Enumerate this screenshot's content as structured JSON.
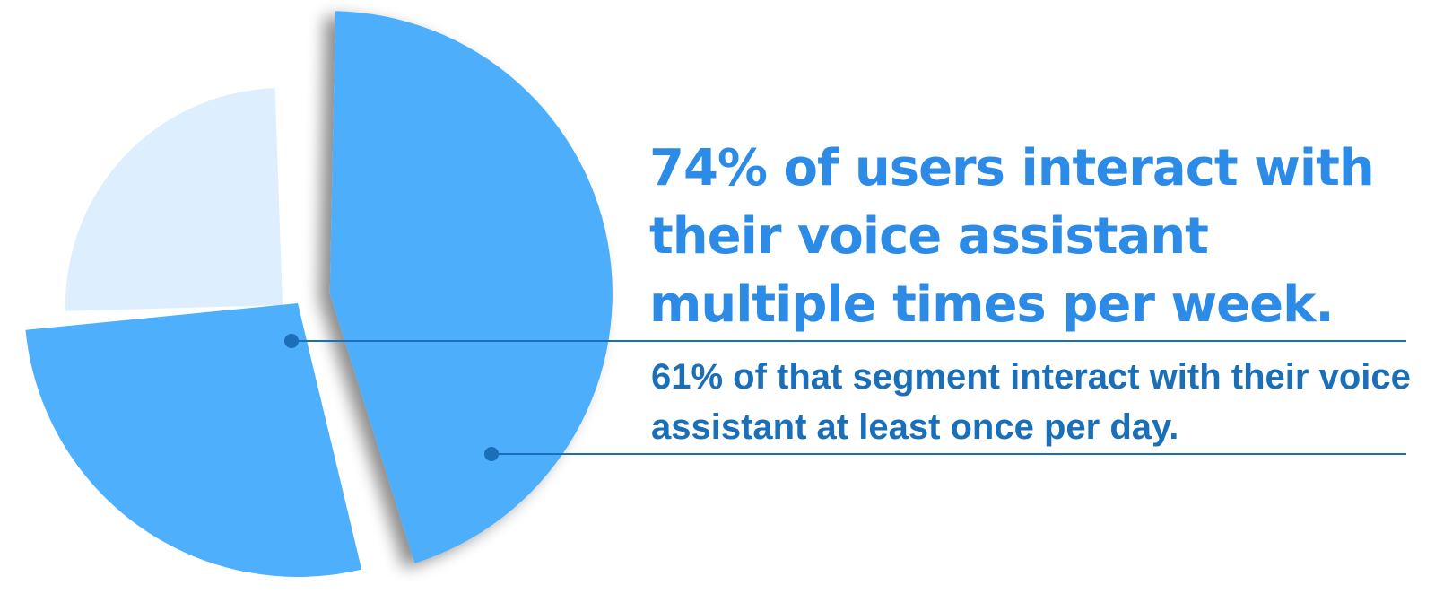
{
  "headline": "74% of users interact with their voice assistant multiple times per week.",
  "subline": "61% of that segment interact with their voice assistant at least once per day.",
  "colors": {
    "slice_main": "#4eaffc",
    "slice_rest": "#ddeefe",
    "headline": "#2b8be6",
    "subline": "#1a6fb8",
    "leader_line": "#1a6fb8"
  },
  "chart_data": {
    "type": "pie",
    "title": "",
    "slices": [
      {
        "label": "",
        "value": 26
      },
      {
        "label": "",
        "value": 74
      }
    ],
    "sub_segment": {
      "parent_value": 74,
      "value": 61,
      "unit": "% of segment",
      "exploded": true
    },
    "annotations": [
      {
        "value": 74,
        "text": "74% of users interact with their voice assistant multiple times per week."
      },
      {
        "value": 61,
        "text": "61% of that segment interact with their voice assistant at least once per day."
      }
    ]
  }
}
